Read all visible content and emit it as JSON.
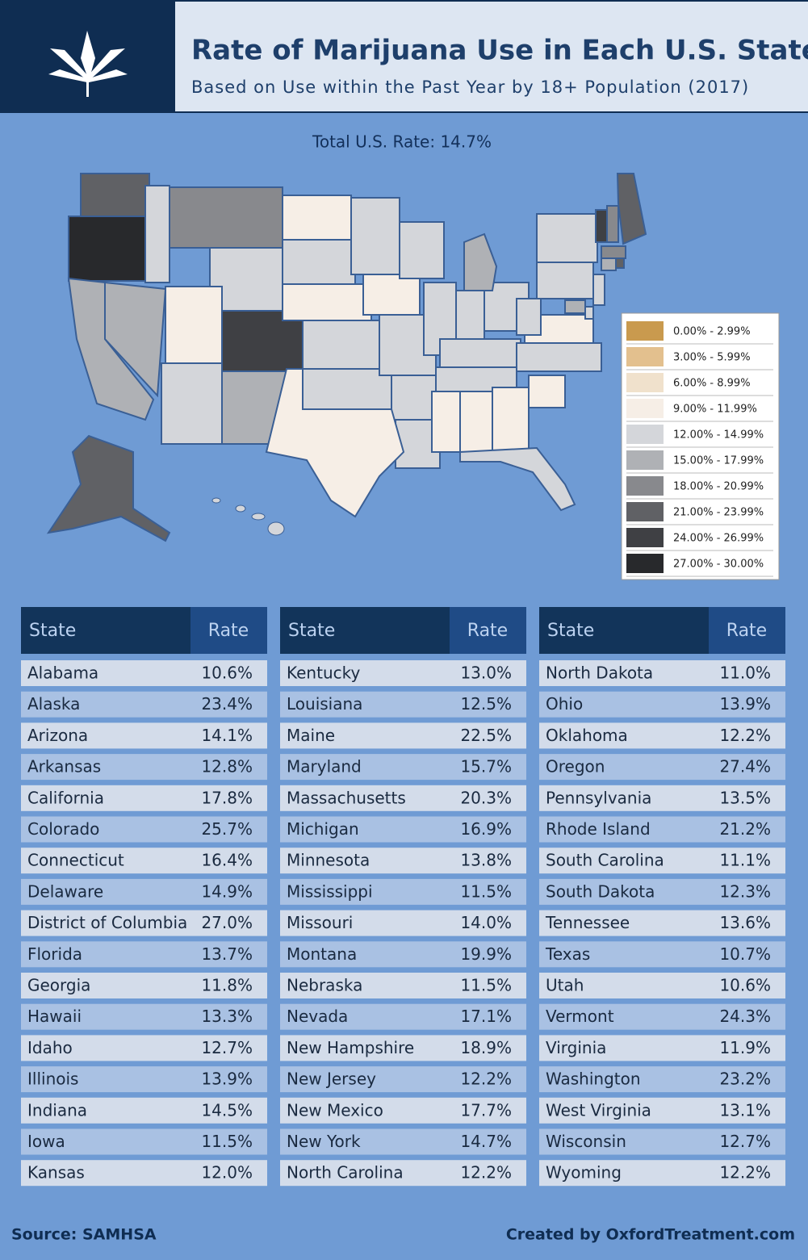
{
  "header": {
    "title": "Rate of Marijuana Use in Each U.S. State",
    "subtitle": "Based on Use within the Past Year by 18+ Population (2017)"
  },
  "total": "Total U.S. Rate: 14.7%",
  "legend": [
    {
      "label": "0.00% - 2.99%",
      "color": "#c99a4e"
    },
    {
      "label": "3.00% - 5.99%",
      "color": "#e3c08e"
    },
    {
      "label": "6.00% - 8.99%",
      "color": "#f0e1cc"
    },
    {
      "label": "9.00% - 11.99%",
      "color": "#f6eee6"
    },
    {
      "label": "12.00% - 14.99%",
      "color": "#d4d6da"
    },
    {
      "label": "15.00% - 17.99%",
      "color": "#afb1b5"
    },
    {
      "label": "18.00% - 20.99%",
      "color": "#88898d"
    },
    {
      "label": "21.00% - 23.99%",
      "color": "#606165"
    },
    {
      "label": "24.00% - 26.99%",
      "color": "#3f4044"
    },
    {
      "label": "27.00% - 30.00%",
      "color": "#28292c"
    }
  ],
  "tables": [
    {
      "headers": [
        "State",
        "Rate"
      ],
      "rows": [
        [
          "Alabama",
          "10.6%"
        ],
        [
          "Alaska",
          "23.4%"
        ],
        [
          "Arizona",
          "14.1%"
        ],
        [
          "Arkansas",
          "12.8%"
        ],
        [
          "California",
          "17.8%"
        ],
        [
          "Colorado",
          "25.7%"
        ],
        [
          "Connecticut",
          "16.4%"
        ],
        [
          "Delaware",
          "14.9%"
        ],
        [
          "District of Columbia",
          "27.0%"
        ],
        [
          "Florida",
          "13.7%"
        ],
        [
          "Georgia",
          "11.8%"
        ],
        [
          "Hawaii",
          "13.3%"
        ],
        [
          "Idaho",
          "12.7%"
        ],
        [
          "Illinois",
          "13.9%"
        ],
        [
          "Indiana",
          "14.5%"
        ],
        [
          "Iowa",
          "11.5%"
        ],
        [
          "Kansas",
          "12.0%"
        ]
      ]
    },
    {
      "headers": [
        "State",
        "Rate"
      ],
      "rows": [
        [
          "Kentucky",
          "13.0%"
        ],
        [
          "Louisiana",
          "12.5%"
        ],
        [
          "Maine",
          "22.5%"
        ],
        [
          "Maryland",
          "15.7%"
        ],
        [
          "Massachusetts",
          "20.3%"
        ],
        [
          "Michigan",
          "16.9%"
        ],
        [
          "Minnesota",
          "13.8%"
        ],
        [
          "Mississippi",
          "11.5%"
        ],
        [
          "Missouri",
          "14.0%"
        ],
        [
          "Montana",
          "19.9%"
        ],
        [
          "Nebraska",
          "11.5%"
        ],
        [
          "Nevada",
          "17.1%"
        ],
        [
          "New Hampshire",
          "18.9%"
        ],
        [
          "New Jersey",
          "12.2%"
        ],
        [
          "New Mexico",
          "17.7%"
        ],
        [
          "New York",
          "14.7%"
        ],
        [
          "North Carolina",
          "12.2%"
        ]
      ]
    },
    {
      "headers": [
        "State",
        "Rate"
      ],
      "rows": [
        [
          "North Dakota",
          "11.0%"
        ],
        [
          "Ohio",
          "13.9%"
        ],
        [
          "Oklahoma",
          "12.2%"
        ],
        [
          "Oregon",
          "27.4%"
        ],
        [
          "Pennsylvania",
          "13.5%"
        ],
        [
          "Rhode Island",
          "21.2%"
        ],
        [
          "South Carolina",
          "11.1%"
        ],
        [
          "South Dakota",
          "12.3%"
        ],
        [
          "Tennessee",
          "13.6%"
        ],
        [
          "Texas",
          "10.7%"
        ],
        [
          "Utah",
          "10.6%"
        ],
        [
          "Vermont",
          "24.3%"
        ],
        [
          "Virginia",
          "11.9%"
        ],
        [
          "Washington",
          "23.2%"
        ],
        [
          "West Virginia",
          "13.1%"
        ],
        [
          "Wisconsin",
          "12.7%"
        ],
        [
          "Wyoming",
          "12.2%"
        ]
      ]
    }
  ],
  "footer": {
    "source": "Source: SAMHSA",
    "credit": "Created by OxfordTreatment.com"
  }
}
